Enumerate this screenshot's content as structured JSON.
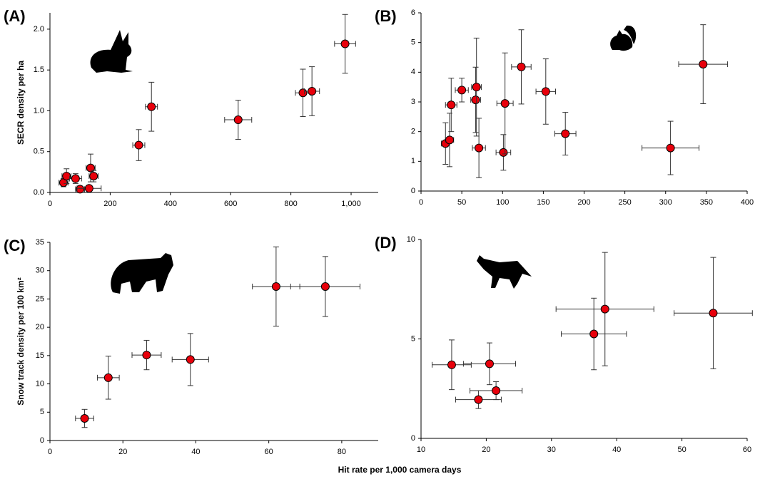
{
  "xlabel": "Hit rate per 1,000 camera days",
  "chart_data": [
    {
      "type": "scatter",
      "title": "(A)",
      "ylabel": "SECR density per ha",
      "color": "#e8000b",
      "x": [
        45,
        55,
        85,
        100,
        130,
        135,
        145,
        295,
        337,
        625,
        840,
        870,
        980
      ],
      "values": [
        0.12,
        0.2,
        0.17,
        0.04,
        0.05,
        0.3,
        0.2,
        0.58,
        1.05,
        0.89,
        1.22,
        1.24,
        1.82
      ],
      "xerr": [
        15,
        15,
        20,
        15,
        40,
        15,
        15,
        20,
        20,
        45,
        25,
        25,
        35
      ],
      "yerr": [
        0.05,
        0.09,
        0.06,
        0.03,
        0.03,
        0.17,
        0.07,
        0.19,
        0.3,
        0.24,
        0.29,
        0.3,
        0.36
      ],
      "xlim": [
        0,
        1090
      ],
      "ylim": [
        0,
        2.2
      ],
      "xticks": [
        0,
        200,
        400,
        600,
        800,
        {
          "value": 1000,
          "label": "1,000"
        }
      ],
      "yticks": [
        {
          "value": 0,
          "label": "0.0"
        },
        0.5,
        {
          "value": 1,
          "label": "1.0"
        },
        1.5,
        {
          "value": 2,
          "label": "2.0"
        }
      ]
    },
    {
      "type": "scatter",
      "title": "(B)",
      "color": "#e8000b",
      "x": [
        30,
        35,
        37,
        50,
        67,
        68,
        71,
        101,
        103,
        123,
        153,
        177,
        306,
        346
      ],
      "values": [
        1.6,
        1.72,
        2.9,
        3.4,
        3.07,
        3.5,
        1.45,
        1.3,
        2.95,
        4.18,
        3.35,
        1.93,
        1.45,
        4.27
      ],
      "xerr": [
        5,
        5,
        7,
        8,
        6,
        6,
        8,
        9,
        10,
        12,
        12,
        13,
        35,
        30
      ],
      "yerr": [
        0.7,
        0.9,
        0.9,
        0.4,
        1.1,
        1.65,
        1.0,
        0.6,
        1.7,
        1.25,
        1.1,
        0.72,
        0.9,
        1.33
      ],
      "xlim": [
        0,
        400
      ],
      "ylim": [
        0,
        6
      ],
      "xticks": [
        0,
        50,
        100,
        150,
        200,
        250,
        300,
        350,
        400
      ],
      "yticks": [
        0,
        1,
        2,
        3,
        4,
        5,
        6
      ]
    },
    {
      "type": "scatter",
      "title": "(C)",
      "ylabel": "Snow track density per 100 km²",
      "color": "#e8000b",
      "x": [
        9.5,
        16,
        26.5,
        38.5,
        62,
        75.5
      ],
      "values": [
        3.9,
        11.1,
        15.1,
        14.3,
        27.2,
        27.2
      ],
      "xerr": [
        2.5,
        3,
        4,
        5,
        6.5,
        9.5
      ],
      "yerr": [
        1.6,
        3.8,
        2.6,
        4.6,
        7,
        5.3
      ],
      "xlim": [
        0,
        90
      ],
      "ylim": [
        0,
        35
      ],
      "xticks": [
        0,
        20,
        40,
        60,
        80
      ],
      "yticks": [
        0,
        5,
        10,
        15,
        20,
        25,
        30,
        35
      ]
    },
    {
      "type": "scatter",
      "title": "(D)",
      "color": "#e8000b",
      "x": [
        14.7,
        20.5,
        21.5,
        18.8,
        36.5,
        38.2,
        54.8
      ],
      "values": [
        3.7,
        3.75,
        2.4,
        1.95,
        5.25,
        6.5,
        6.3
      ],
      "xerr": [
        3,
        4,
        4,
        3.5,
        5,
        7.5,
        6
      ],
      "yerr": [
        1.25,
        1.05,
        0.45,
        0.45,
        1.8,
        2.85,
        2.8
      ],
      "xlim": [
        10,
        60
      ],
      "ylim": [
        0,
        10
      ],
      "xticks": [
        10,
        20,
        30,
        40,
        50,
        60
      ],
      "yticks": [
        0,
        5,
        10
      ]
    }
  ]
}
